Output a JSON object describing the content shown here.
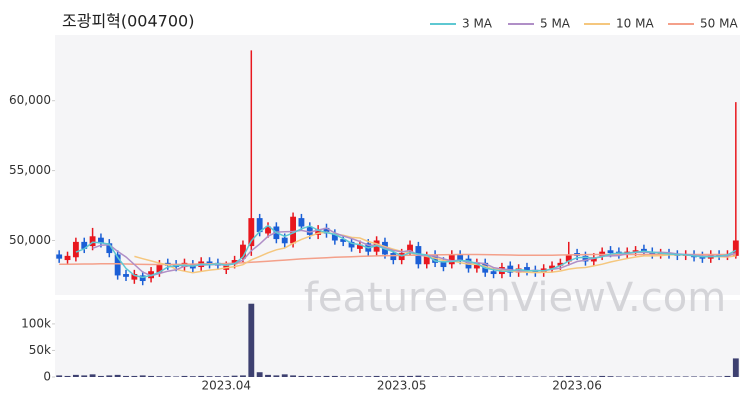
{
  "chart_data": {
    "type": "candlestick",
    "title": "조광피혁(004700)",
    "watermark": "feature.enViewV.com",
    "categories": [
      null,
      null,
      null,
      null,
      null,
      null,
      null,
      null,
      null,
      null,
      null,
      null,
      null,
      null,
      null,
      null,
      null,
      null,
      null,
      null,
      "2023.04",
      null,
      null,
      null,
      null,
      null,
      null,
      null,
      null,
      null,
      null,
      null,
      null,
      null,
      null,
      null,
      null,
      null,
      null,
      null,
      null,
      "2023.05",
      null,
      null,
      null,
      null,
      null,
      null,
      null,
      null,
      null,
      null,
      null,
      null,
      null,
      null,
      null,
      null,
      null,
      null,
      null,
      null,
      "2023.06",
      null,
      null,
      null,
      null,
      null,
      null,
      null,
      null,
      null,
      null,
      null,
      null,
      null,
      null,
      null,
      null,
      null,
      null,
      null
    ],
    "open": [
      49000,
      48600,
      48800,
      49900,
      49600,
      50200,
      49800,
      49000,
      47600,
      47200,
      47500,
      47300,
      47700,
      48400,
      48300,
      48100,
      48300,
      48100,
      48500,
      48400,
      47900,
      48300,
      48700,
      49600,
      51600,
      50500,
      51000,
      50200,
      49800,
      51600,
      51000,
      50400,
      50900,
      50500,
      50100,
      49900,
      49400,
      49800,
      49200,
      49900,
      49100,
      48600,
      49200,
      49600,
      48300,
      49000,
      48500,
      48300,
      49000,
      48700,
      48000,
      48400,
      47800,
      47600,
      48200,
      47700,
      48100,
      47900,
      47700,
      48000,
      48200,
      48500,
      49100,
      48900,
      48500,
      48900,
      49300,
      49200,
      49000,
      49200,
      49400,
      49200,
      49000,
      49100,
      49000,
      48900,
      49000,
      48900,
      48700,
      49000,
      48900,
      48900
    ],
    "high": [
      49300,
      49200,
      50200,
      50200,
      50900,
      50500,
      50100,
      49300,
      47900,
      47900,
      47800,
      48100,
      48600,
      48700,
      48600,
      48700,
      48600,
      48800,
      48800,
      48700,
      48500,
      48900,
      50000,
      63600,
      51900,
      51300,
      51300,
      50500,
      52000,
      51900,
      51300,
      51100,
      51200,
      50800,
      50400,
      50200,
      50000,
      50100,
      50300,
      50200,
      49400,
      49400,
      50000,
      49900,
      49200,
      49300,
      48800,
      49300,
      49300,
      49000,
      48700,
      48700,
      48100,
      48400,
      48500,
      48300,
      48400,
      48200,
      48300,
      48500,
      48700,
      49900,
      49400,
      49200,
      49100,
      49500,
      49600,
      49500,
      49500,
      49600,
      49700,
      49500,
      49400,
      49400,
      49300,
      49300,
      49300,
      49200,
      49300,
      49300,
      49300,
      59900
    ],
    "low": [
      48400,
      48300,
      48500,
      49100,
      49300,
      49500,
      48800,
      47200,
      47100,
      46900,
      46800,
      47000,
      47400,
      47900,
      47800,
      47800,
      47700,
      47800,
      48000,
      47900,
      47600,
      48000,
      48400,
      48900,
      50300,
      50200,
      49800,
      49500,
      49500,
      50700,
      50100,
      50100,
      50200,
      49700,
      49600,
      49200,
      49100,
      48900,
      48900,
      48700,
      48300,
      48300,
      48900,
      48000,
      48000,
      48100,
      47800,
      48000,
      48300,
      47700,
      47700,
      47400,
      47300,
      47300,
      47400,
      47400,
      47500,
      47400,
      47400,
      47700,
      47900,
      48200,
      48600,
      48200,
      48200,
      48600,
      48800,
      48700,
      48700,
      48900,
      48900,
      48700,
      48700,
      48700,
      48600,
      48600,
      48500,
      48400,
      48400,
      48600,
      48600,
      48700
    ],
    "close": [
      48700,
      48900,
      49900,
      49400,
      50300,
      49800,
      49100,
      47500,
      47400,
      47600,
      47100,
      47800,
      48300,
      48200,
      48100,
      48400,
      48000,
      48500,
      48300,
      48200,
      48200,
      48600,
      49700,
      51600,
      50600,
      51000,
      50100,
      49800,
      51700,
      51000,
      50400,
      50800,
      50500,
      50000,
      49900,
      49500,
      49700,
      49200,
      50000,
      49000,
      48600,
      49100,
      49700,
      48300,
      48900,
      48400,
      48100,
      49000,
      48600,
      48000,
      48400,
      47700,
      47600,
      48100,
      47700,
      48000,
      47800,
      47700,
      48000,
      48200,
      48400,
      49000,
      48900,
      48500,
      48800,
      49200,
      49100,
      49000,
      49200,
      49300,
      49200,
      49000,
      49100,
      49000,
      48900,
      49000,
      48800,
      48700,
      49000,
      48900,
      49000,
      50000
    ],
    "up_color": "#e8171e",
    "down_color": "#1b5fd6",
    "series": [
      {
        "name": "3 MA",
        "color": "#5ec8d2",
        "values": [
          null,
          null,
          49167,
          49400,
          49867,
          49833,
          49733,
          48800,
          48000,
          47500,
          47367,
          47500,
          47733,
          48100,
          48200,
          48233,
          48167,
          48300,
          48267,
          48333,
          48233,
          48333,
          48833,
          49967,
          50633,
          51067,
          50567,
          50300,
          50533,
          50833,
          51033,
          50733,
          50567,
          50433,
          50133,
          49800,
          49700,
          49467,
          49633,
          49400,
          49200,
          48900,
          49133,
          49033,
          48967,
          48533,
          48467,
          48500,
          48567,
          48533,
          48333,
          48033,
          47900,
          47800,
          47800,
          47933,
          47833,
          47833,
          47833,
          47967,
          48200,
          48533,
          48767,
          48800,
          48733,
          48833,
          49033,
          49100,
          49100,
          49167,
          49233,
          49167,
          49100,
          49033,
          49000,
          48967,
          48900,
          48833,
          48833,
          48867,
          48967,
          49300
        ]
      },
      {
        "name": "5 MA",
        "color": "#b08fc7",
        "values": [
          null,
          null,
          null,
          null,
          49440,
          49660,
          49700,
          49220,
          48820,
          48280,
          47740,
          47480,
          47640,
          47800,
          47900,
          48160,
          48200,
          48240,
          48260,
          48280,
          48240,
          48360,
          48600,
          49260,
          49740,
          50300,
          50600,
          50620,
          50640,
          50720,
          50600,
          50740,
          50880,
          50540,
          50320,
          50140,
          49920,
          49660,
          49660,
          49480,
          49300,
          49180,
          49280,
          48940,
          48920,
          48880,
          48680,
          48540,
          48600,
          48420,
          48420,
          48340,
          48060,
          47960,
          47900,
          47820,
          47840,
          47860,
          47840,
          47940,
          48020,
          48260,
          48500,
          48600,
          48720,
          48880,
          48900,
          48920,
          49060,
          49160,
          49160,
          49140,
          49160,
          49120,
          49040,
          49000,
          48960,
          48880,
          48880,
          48880,
          48880,
          49120
        ]
      },
      {
        "name": "10 MA",
        "color": "#f5c77e",
        "values": [
          null,
          null,
          null,
          null,
          null,
          null,
          null,
          null,
          null,
          48860,
          48700,
          48540,
          48380,
          48260,
          47940,
          47800,
          47690,
          47790,
          47880,
          47940,
          48050,
          48130,
          48270,
          48610,
          48860,
          49120,
          49330,
          49460,
          49800,
          50080,
          50300,
          50520,
          50600,
          50440,
          50370,
          50220,
          50180,
          49930,
          49760,
          49560,
          49380,
          49210,
          49130,
          48960,
          48860,
          48730,
          48570,
          48550,
          48410,
          48310,
          48290,
          48150,
          47940,
          47920,
          47800,
          47760,
          47730,
          47700,
          47720,
          47740,
          47820,
          47950,
          48030,
          48070,
          48180,
          48300,
          48460,
          48590,
          48710,
          48820,
          48900,
          48900,
          48920,
          48970,
          48980,
          48960,
          48930,
          48900,
          48880,
          48840,
          48820,
          48900
        ]
      },
      {
        "name": "50 MA",
        "color": "#f4a08a",
        "values": [
          48300,
          48300,
          48310,
          48320,
          48320,
          48330,
          48330,
          48330,
          48320,
          48300,
          48290,
          48280,
          48280,
          48280,
          48290,
          48300,
          48310,
          48320,
          48330,
          48340,
          48350,
          48370,
          48400,
          48440,
          48480,
          48520,
          48560,
          48600,
          48640,
          48680,
          48710,
          48740,
          48770,
          48800,
          48820,
          48840,
          48860,
          48880,
          48900,
          48910,
          48920,
          48930,
          48940,
          48950,
          48960,
          48970,
          48980,
          48990,
          49000,
          49000,
          49000,
          48990,
          48980,
          48970,
          48960,
          48950,
          48950,
          48950,
          48950,
          48950,
          48960,
          48970,
          48980,
          48990,
          49000,
          49000,
          49000,
          49000,
          49000,
          49000,
          49000,
          49000,
          49000,
          49000,
          49000,
          49000,
          49000,
          49000,
          49000,
          49000,
          49000,
          49000
        ]
      }
    ],
    "ylim": [
      46100,
      64700
    ],
    "yticks": [
      {
        "value": 50000,
        "label": "50,000"
      },
      {
        "value": 55000,
        "label": "55,000"
      },
      {
        "value": 60000,
        "label": "60,000"
      }
    ],
    "volume": {
      "color": "#3d4070",
      "ylim": [
        0,
        145000
      ],
      "yticks": [
        0,
        {
          "value": 50000,
          "label": "50k"
        },
        {
          "value": 100000,
          "label": "100k"
        }
      ],
      "values": [
        3000,
        2000,
        4000,
        3000,
        5000,
        2000,
        3000,
        4000,
        2000,
        2000,
        3000,
        2000,
        1500,
        1500,
        1000,
        2000,
        1500,
        2000,
        1500,
        1500,
        1500,
        2500,
        3000,
        138000,
        9000,
        4000,
        3000,
        5000,
        3000,
        2000,
        2000,
        1500,
        2000,
        2000,
        1500,
        1500,
        1500,
        1500,
        2000,
        1500,
        1500,
        2000,
        2000,
        2500,
        1500,
        1500,
        1000,
        1500,
        1500,
        1000,
        1000,
        1000,
        1000,
        1500,
        1000,
        1500,
        1000,
        1000,
        1000,
        1000,
        1500,
        2000,
        1500,
        1000,
        1000,
        2000,
        1500,
        1000,
        1000,
        1000,
        1000,
        1000,
        1000,
        1000,
        1000,
        1000,
        1000,
        1000,
        1000,
        1000,
        2000,
        35000
      ]
    }
  }
}
